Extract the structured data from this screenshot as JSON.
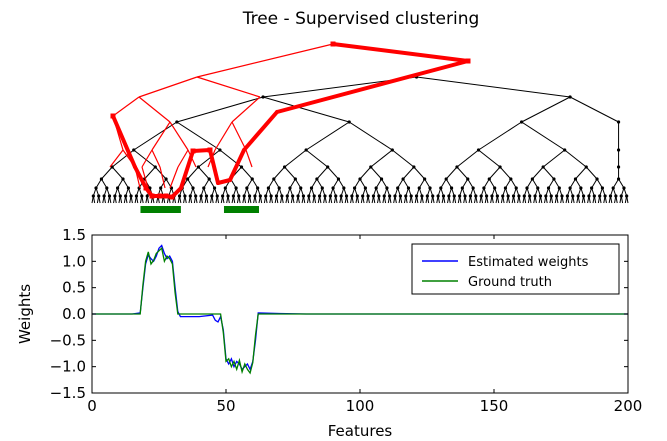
{
  "title": "Tree - Supervised clustering",
  "chart_data": [
    {
      "type": "tree",
      "title": "Tree - Supervised clustering",
      "description_levels": 9,
      "leaf_count": 200,
      "colors": {
        "default_edges": "#000000",
        "selected_edges": "#ff0000",
        "support_bars": "#008000"
      },
      "selected_supports": [
        [
          18,
          33
        ],
        [
          49,
          62
        ]
      ]
    },
    {
      "type": "line",
      "xlabel": "Features",
      "ylabel": "Weights",
      "xlim": [
        0,
        200
      ],
      "ylim": [
        -1.5,
        1.5
      ],
      "x_ticks": [
        "0",
        "50",
        "100",
        "150",
        "200"
      ],
      "y_ticks": [
        "1.5",
        "1.0",
        "0.5",
        "0.0",
        "−0.5",
        "−1.0",
        "−1.5"
      ],
      "legend_position": "upper right",
      "series": [
        {
          "name": "Estimated weights",
          "color": "#0000ff",
          "x": [
            0,
            15,
            18,
            19,
            20,
            21,
            22,
            23,
            24,
            25,
            26,
            27,
            28,
            29,
            30,
            31,
            32,
            33,
            34,
            35,
            40,
            45,
            46,
            47,
            48,
            49,
            50,
            51,
            52,
            53,
            54,
            55,
            56,
            57,
            58,
            59,
            60,
            61,
            62,
            70,
            80,
            200
          ],
          "y": [
            0,
            0,
            0.02,
            0.5,
            0.95,
            1.12,
            1.05,
            1.0,
            1.1,
            1.25,
            1.3,
            1.15,
            1.05,
            1.1,
            1.0,
            0.5,
            0.05,
            -0.05,
            -0.05,
            -0.05,
            -0.05,
            -0.02,
            -0.12,
            -0.15,
            -0.05,
            -0.3,
            -0.85,
            -0.95,
            -0.85,
            -1.0,
            -0.9,
            -0.95,
            -1.05,
            -1.0,
            -0.95,
            -1.05,
            -0.9,
            -0.5,
            0.02,
            0.01,
            0,
            0
          ]
        },
        {
          "name": "Ground truth",
          "color": "#008000",
          "x": [
            0,
            15,
            18,
            19,
            20,
            21,
            22,
            23,
            24,
            25,
            26,
            27,
            28,
            29,
            30,
            31,
            32,
            33,
            40,
            48,
            49,
            50,
            51,
            52,
            53,
            54,
            55,
            56,
            57,
            58,
            59,
            60,
            61,
            62,
            80,
            200
          ],
          "y": [
            0,
            0,
            0.0,
            0.55,
            1.0,
            1.18,
            0.95,
            1.02,
            1.15,
            1.2,
            1.25,
            1.0,
            1.1,
            1.05,
            0.95,
            0.4,
            0.0,
            0.0,
            0.0,
            0.0,
            -0.35,
            -0.9,
            -0.85,
            -1.0,
            -0.9,
            -1.05,
            -0.88,
            -1.1,
            -0.95,
            -1.05,
            -1.12,
            -0.92,
            -0.4,
            0.0,
            0.0,
            0.0
          ]
        }
      ]
    }
  ]
}
